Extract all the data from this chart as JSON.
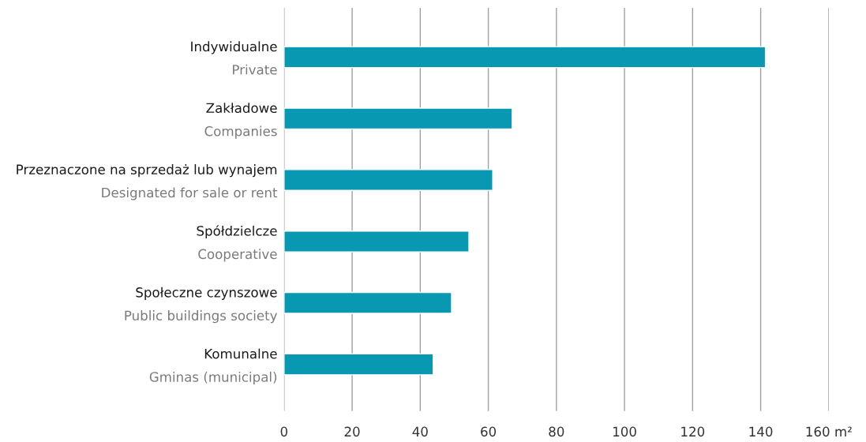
{
  "chart_data": {
    "type": "bar",
    "orientation": "horizontal",
    "categories": [
      "Indywidualne\nPrivate",
      "Zakładowe\nCompanies",
      "Przeznaczone na sprzedaż lub wynajem\nDesignated for sale or rent",
      "Spółdzielcze\nCooperative",
      "Społeczne czynszowe\nPublic buildings society",
      "Komunalne\nGminas (municipal)"
    ],
    "values": [
      141.4,
      67.0,
      61.3,
      54.3,
      49.2,
      43.8
    ],
    "color": "#0898b2",
    "xlim": [
      0,
      160
    ],
    "xticks": [
      0,
      20,
      40,
      60,
      80,
      100,
      120,
      140,
      {
        "value": 160,
        "label": "160 m²"
      }
    ],
    "grid": "x"
  }
}
